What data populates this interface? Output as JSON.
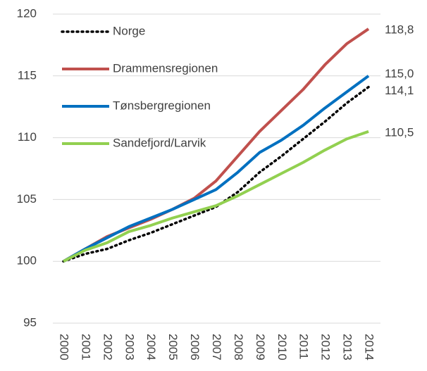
{
  "chart_data": {
    "type": "line",
    "categories": [
      "2000",
      "2001",
      "2002",
      "2003",
      "2004",
      "2005",
      "2006",
      "2007",
      "2008",
      "2009",
      "2010",
      "2011",
      "2012",
      "2013",
      "2014"
    ],
    "series": [
      {
        "name": "Norge",
        "color": "#000000",
        "dash": "dotted",
        "values": [
          100,
          100.6,
          101,
          101.7,
          102.3,
          103,
          103.7,
          104.4,
          105.6,
          107.2,
          108.5,
          109.9,
          111.3,
          112.8,
          114.1
        ],
        "value_labels": [
          null,
          null,
          null,
          null,
          null,
          null,
          null,
          null,
          null,
          null,
          null,
          null,
          null,
          null,
          "114,1"
        ]
      },
      {
        "name": "Drammensregionen",
        "color": "#c0504d",
        "values": [
          100,
          101,
          102,
          102.7,
          103.4,
          104.2,
          105.1,
          106.5,
          108.5,
          110.5,
          112.2,
          113.9,
          115.9,
          117.6,
          118.8
        ],
        "value_labels": [
          null,
          null,
          null,
          null,
          null,
          null,
          null,
          null,
          null,
          null,
          null,
          null,
          null,
          null,
          "118,8"
        ]
      },
      {
        "name": "Tønsbergregionen",
        "color": "#0070c0",
        "values": [
          100,
          101,
          101.9,
          102.8,
          103.5,
          104.2,
          105,
          105.8,
          107.2,
          108.8,
          109.8,
          111,
          112.4,
          113.7,
          115.0
        ],
        "value_labels": [
          null,
          null,
          null,
          null,
          null,
          null,
          null,
          null,
          null,
          null,
          null,
          null,
          null,
          null,
          "115,0"
        ]
      },
      {
        "name": "Sandefjord/Larvik",
        "color": "#92d050",
        "values": [
          100,
          100.9,
          101.5,
          102.4,
          102.9,
          103.5,
          104,
          104.5,
          105.3,
          106.2,
          107.1,
          108,
          109,
          109.9,
          110.5
        ],
        "value_labels": [
          null,
          null,
          null,
          null,
          null,
          null,
          null,
          null,
          null,
          null,
          null,
          null,
          null,
          null,
          "110,5"
        ]
      }
    ],
    "ylim": [
      95,
      120
    ],
    "yticks": [
      95,
      100,
      105,
      110,
      115,
      120
    ],
    "grid": true,
    "legend": "top-left"
  }
}
